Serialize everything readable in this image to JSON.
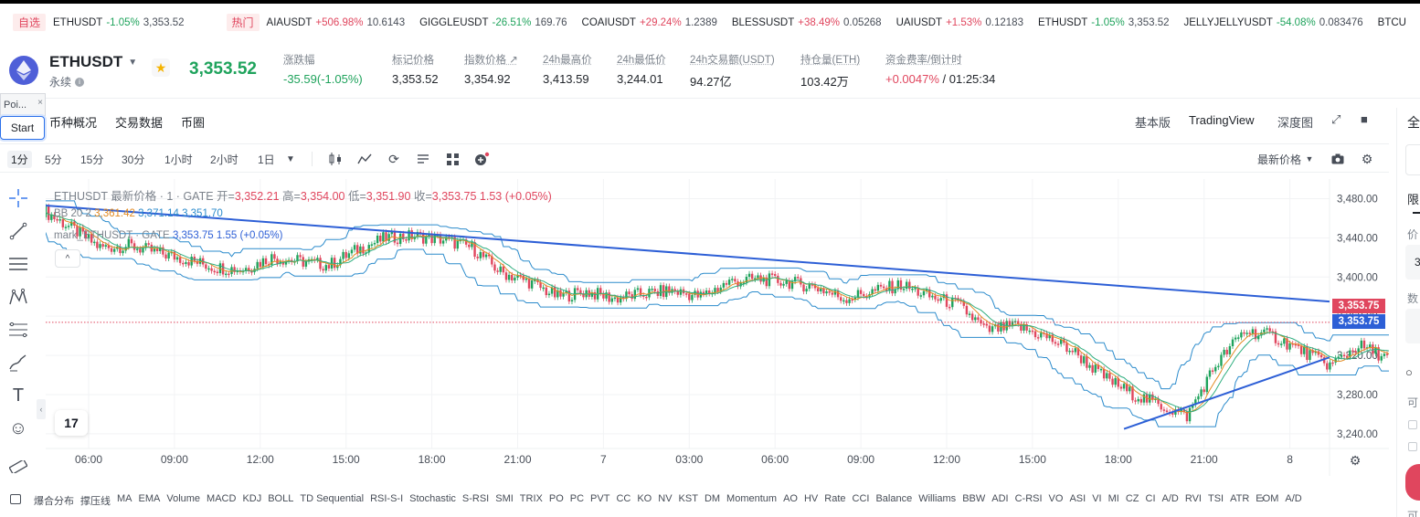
{
  "ticker": {
    "fav_label": "自选",
    "hot_label": "热门",
    "fav_items": [
      {
        "symbol": "ETHUSDT",
        "change": "-1.05%",
        "price": "3,353.52",
        "dir": "down"
      }
    ],
    "hot_items": [
      {
        "symbol": "AIAUSDT",
        "change": "+506.98%",
        "price": "10.6143",
        "dir": "up"
      },
      {
        "symbol": "GIGGLEUSDT",
        "change": "-26.51%",
        "price": "169.76",
        "dir": "down"
      },
      {
        "symbol": "COAIUSDT",
        "change": "+29.24%",
        "price": "1.2389",
        "dir": "up"
      },
      {
        "symbol": "BLESSUSDT",
        "change": "+38.49%",
        "price": "0.05268",
        "dir": "up"
      },
      {
        "symbol": "UAIUSDT",
        "change": "+1.53%",
        "price": "0.12183",
        "dir": "up"
      },
      {
        "symbol": "ETHUSDT",
        "change": "-1.05%",
        "price": "3,353.52",
        "dir": "down"
      },
      {
        "symbol": "JELLYJELLYUSDT",
        "change": "-54.08%",
        "price": "0.083476",
        "dir": "down"
      },
      {
        "symbol": "BTCU",
        "change": "",
        "price": "",
        "dir": "up"
      }
    ]
  },
  "header": {
    "pair": "ETHUSDT",
    "contract_type": "永续",
    "last_price": "3,353.52",
    "stats": [
      {
        "label": "涨跌幅",
        "value": "-35.59(-1.05%)",
        "style": "green"
      },
      {
        "label": "标记价格",
        "value": "3,353.52",
        "style": ""
      },
      {
        "label": "指数价格 ↗",
        "value": "3,354.92",
        "style": ""
      },
      {
        "label": "24h最高价",
        "value": "3,413.59",
        "style": ""
      },
      {
        "label": "24h最低价",
        "value": "3,244.01",
        "style": ""
      },
      {
        "label": "24h交易额(USDT)",
        "value": "94.27亿",
        "style": ""
      },
      {
        "label": "持仓量(ETH)",
        "value": "103.42万",
        "style": ""
      }
    ],
    "funding": {
      "label": "资金费率/倒计时",
      "rate": "+0.0047%",
      "countdown": " / 01:25:34"
    }
  },
  "popup": {
    "label": "Poi...",
    "close": "×",
    "start": "Start"
  },
  "tabs": [
    "币种概况",
    "交易数据",
    "币圈"
  ],
  "views": {
    "basic": "基本版",
    "tradingview": "TradingView",
    "depth": "深度图"
  },
  "timeframes": [
    "1分",
    "5分",
    "15分",
    "30分",
    "1小时",
    "2小时",
    "1日"
  ],
  "price_type": "最新价格",
  "legend": {
    "main_prefix": "ETHUSDT 最新价格 · 1 · GATE",
    "open_label": "开=",
    "open": "3,352.21",
    "high_label": "高=",
    "high": "3,354.00",
    "low_label": "低=",
    "low": "3,351.90",
    "close_label": "收=",
    "close": "3,353.75",
    "change": "1.53 (+0.05%)",
    "bb_label": "BB 20 2",
    "bb_mid": "3,361.42",
    "bb_upper": "3,371.14",
    "bb_lower": "3,351.70",
    "mark_label": "mark_ETHUSDT · GATE",
    "mark_price": "3,353.75",
    "mark_change": "1.55 (+0.05%)",
    "toggle": "^"
  },
  "tv_logo": "17",
  "price_tags": [
    {
      "value": "3,353.75",
      "color": "#e0465e"
    },
    {
      "value": "3,353.75",
      "color": "#2d5fd6"
    }
  ],
  "indicators": {
    "items": [
      "爆合分布",
      "撑压线",
      "MA",
      "EMA",
      "Volume",
      "MACD",
      "KDJ",
      "BOLL",
      "TD Sequential",
      "RSI-S-I",
      "Stochastic",
      "S-RSI",
      "SMI",
      "TRIX",
      "PO",
      "PC",
      "PVT",
      "CC",
      "KO",
      "NV",
      "KST",
      "DM",
      "Momentum",
      "AO",
      "HV",
      "Rate",
      "CCI",
      "Balance",
      "Williams",
      "BBW",
      "ADI",
      "C-RSI",
      "VO",
      "ASI",
      "VI",
      "MI",
      "CZ",
      "CI",
      "A/D",
      "RVI",
      "TSI",
      "ATR",
      "EOM",
      "A/D"
    ],
    "more": "›"
  },
  "rightpanel": {
    "t1": "全",
    "t2": "限",
    "t3": "价",
    "t4": "3",
    "t5": "数",
    "t6": "可",
    "t7": "可"
  },
  "colors": {
    "green": "#1fa35c",
    "red": "#e0465e",
    "trendline": "#2d5fd6",
    "bb": "#2b8bcc"
  },
  "chart_data": {
    "type": "line",
    "x_ticks": [
      "06:00",
      "09:00",
      "12:00",
      "15:00",
      "18:00",
      "21:00",
      "7",
      "03:00",
      "06:00",
      "09:00",
      "12:00",
      "15:00",
      "18:00",
      "21:00",
      "8"
    ],
    "y_ticks": [
      "3,480.00",
      "3,440.00",
      "3,400.00",
      "3,360.00",
      "3,320.00",
      "3,280.00",
      "3,240.00"
    ],
    "ylim": [
      3225,
      3500
    ],
    "series": [
      {
        "name": "ETHUSDT",
        "x_hours": [
          0,
          1,
          2,
          3,
          4,
          5,
          6,
          7,
          8,
          9,
          10,
          11,
          12,
          13,
          14,
          15,
          16,
          17,
          18,
          19,
          20,
          21,
          22,
          23,
          24,
          25,
          26,
          27,
          28,
          29,
          30,
          31,
          32,
          33,
          34,
          35,
          36,
          37,
          38,
          39,
          40,
          41,
          42,
          43,
          44,
          45,
          46,
          47,
          48,
          49,
          50,
          51
        ],
        "values": [
          3468,
          3450,
          3430,
          3432,
          3425,
          3418,
          3410,
          3408,
          3420,
          3416,
          3412,
          3428,
          3440,
          3442,
          3438,
          3430,
          3405,
          3395,
          3380,
          3385,
          3378,
          3383,
          3386,
          3380,
          3395,
          3398,
          3395,
          3390,
          3378,
          3385,
          3392,
          3380,
          3372,
          3345,
          3350,
          3340,
          3325,
          3300,
          3282,
          3270,
          3258,
          3310,
          3345,
          3340,
          3325,
          3310,
          3330,
          3318,
          3312,
          3320,
          3310,
          3318
        ]
      }
    ],
    "trendlines": [
      {
        "from": [
          "05:00",
          3473
        ],
        "to": [
          "right-edge",
          3375
        ]
      },
      {
        "from": [
          "01:50",
          3245
        ],
        "to": [
          "right-edge",
          3318
        ]
      }
    ],
    "current_price": 3353.75
  }
}
